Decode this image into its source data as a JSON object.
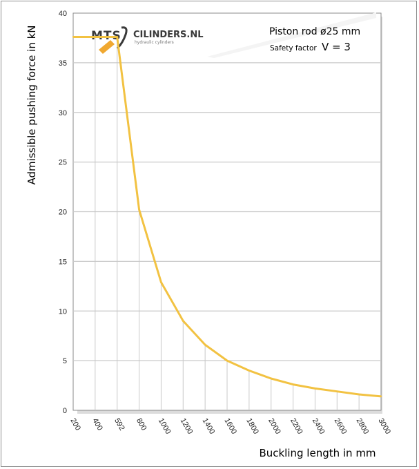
{
  "chart_data": {
    "type": "line",
    "xlabel": "Buckling length in mm",
    "ylabel": "Admissible pushing  force in kN",
    "x_tick_labels": [
      "200",
      "400",
      "592",
      "800",
      "1000",
      "1200",
      "1400",
      "1600",
      "1800",
      "2000",
      "2200",
      "2400",
      "2600",
      "2800",
      "3000"
    ],
    "y_tick_labels": [
      "0",
      "5",
      "10",
      "15",
      "20",
      "25",
      "30",
      "35",
      "40"
    ],
    "ylim": [
      0,
      40
    ],
    "grid": true,
    "series": [
      {
        "values": [
          {
            "x": "200",
            "y": 37.6
          },
          {
            "x": "400",
            "y": 37.6
          },
          {
            "x": "592",
            "y": 37.6
          },
          {
            "x": "800",
            "y": 20.2
          },
          {
            "x": "1000",
            "y": 12.9
          },
          {
            "x": "1200",
            "y": 9.0
          },
          {
            "x": "1400",
            "y": 6.6
          },
          {
            "x": "1600",
            "y": 5.0
          },
          {
            "x": "1800",
            "y": 4.0
          },
          {
            "x": "2000",
            "y": 3.2
          },
          {
            "x": "2200",
            "y": 2.6
          },
          {
            "x": "2400",
            "y": 2.2
          },
          {
            "x": "2600",
            "y": 1.9
          },
          {
            "x": "2800",
            "y": 1.6
          },
          {
            "x": "3000",
            "y": 1.4
          }
        ]
      }
    ],
    "annotations": {
      "title_line": "Piston rod ø25 mm",
      "safety_label": "Safety factor",
      "safety_value": "V = 3"
    },
    "logo": {
      "brand_left": "MTS",
      "brand_right": "CILINDERS.NL",
      "tagline": "hydraulic cylinders"
    },
    "colors": {
      "line": "#f2c242",
      "grid": "#c8c8c8",
      "plot_border": "#8a8a8a",
      "logo_accent": "#f0a830"
    }
  }
}
